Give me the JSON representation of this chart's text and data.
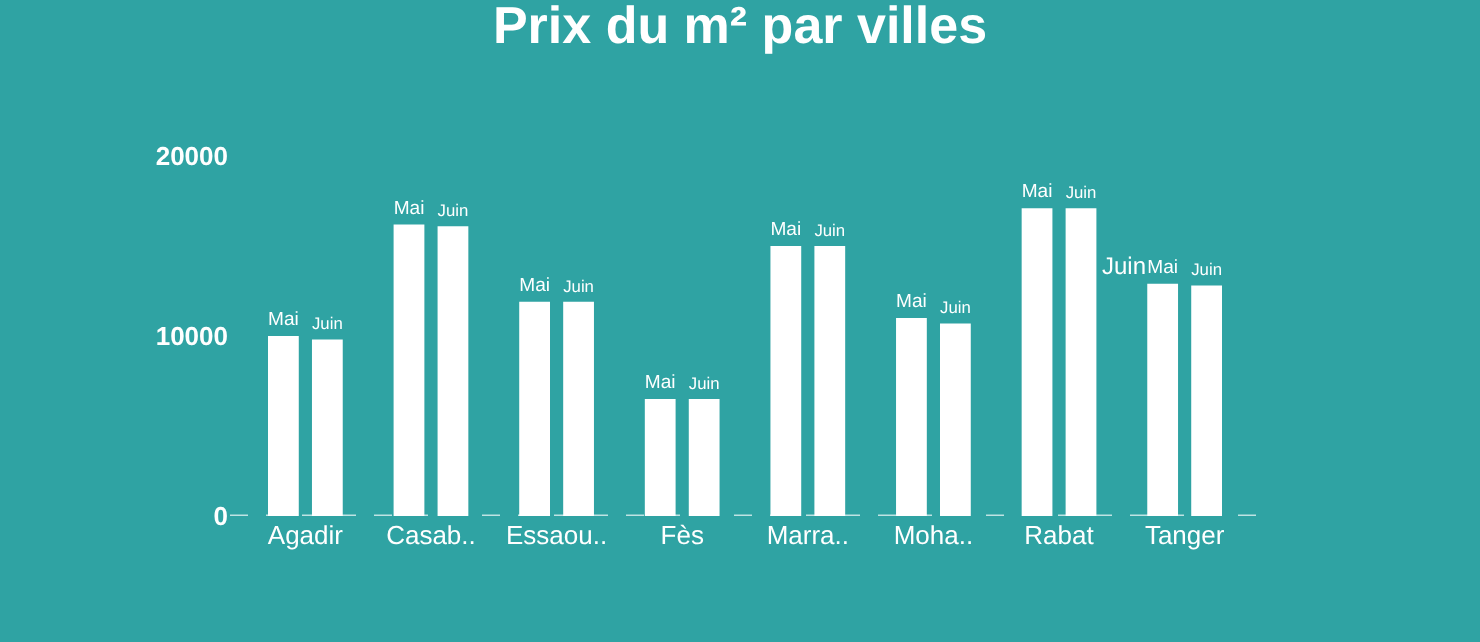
{
  "chart_data": {
    "type": "bar",
    "title": "Prix du m² par villes",
    "categories": [
      "Agadir",
      "Casab..",
      "Essaou..",
      "Fès",
      "Marra..",
      "Moha..",
      "Rabat",
      "Tanger"
    ],
    "series": [
      {
        "name": "Mai",
        "color": "#ffffff",
        "values": [
          10000,
          16200,
          11900,
          6500,
          15000,
          11000,
          17100,
          12900
        ]
      },
      {
        "name": "Juin",
        "color": "#ffffff",
        "values": [
          9800,
          16100,
          11900,
          6500,
          15000,
          10700,
          17100,
          12800
        ]
      }
    ],
    "ylim": [
      0,
      20000
    ],
    "yticks": [
      0,
      10000,
      20000
    ],
    "grid": false,
    "legend": false,
    "annotations": [
      "Juin"
    ]
  }
}
